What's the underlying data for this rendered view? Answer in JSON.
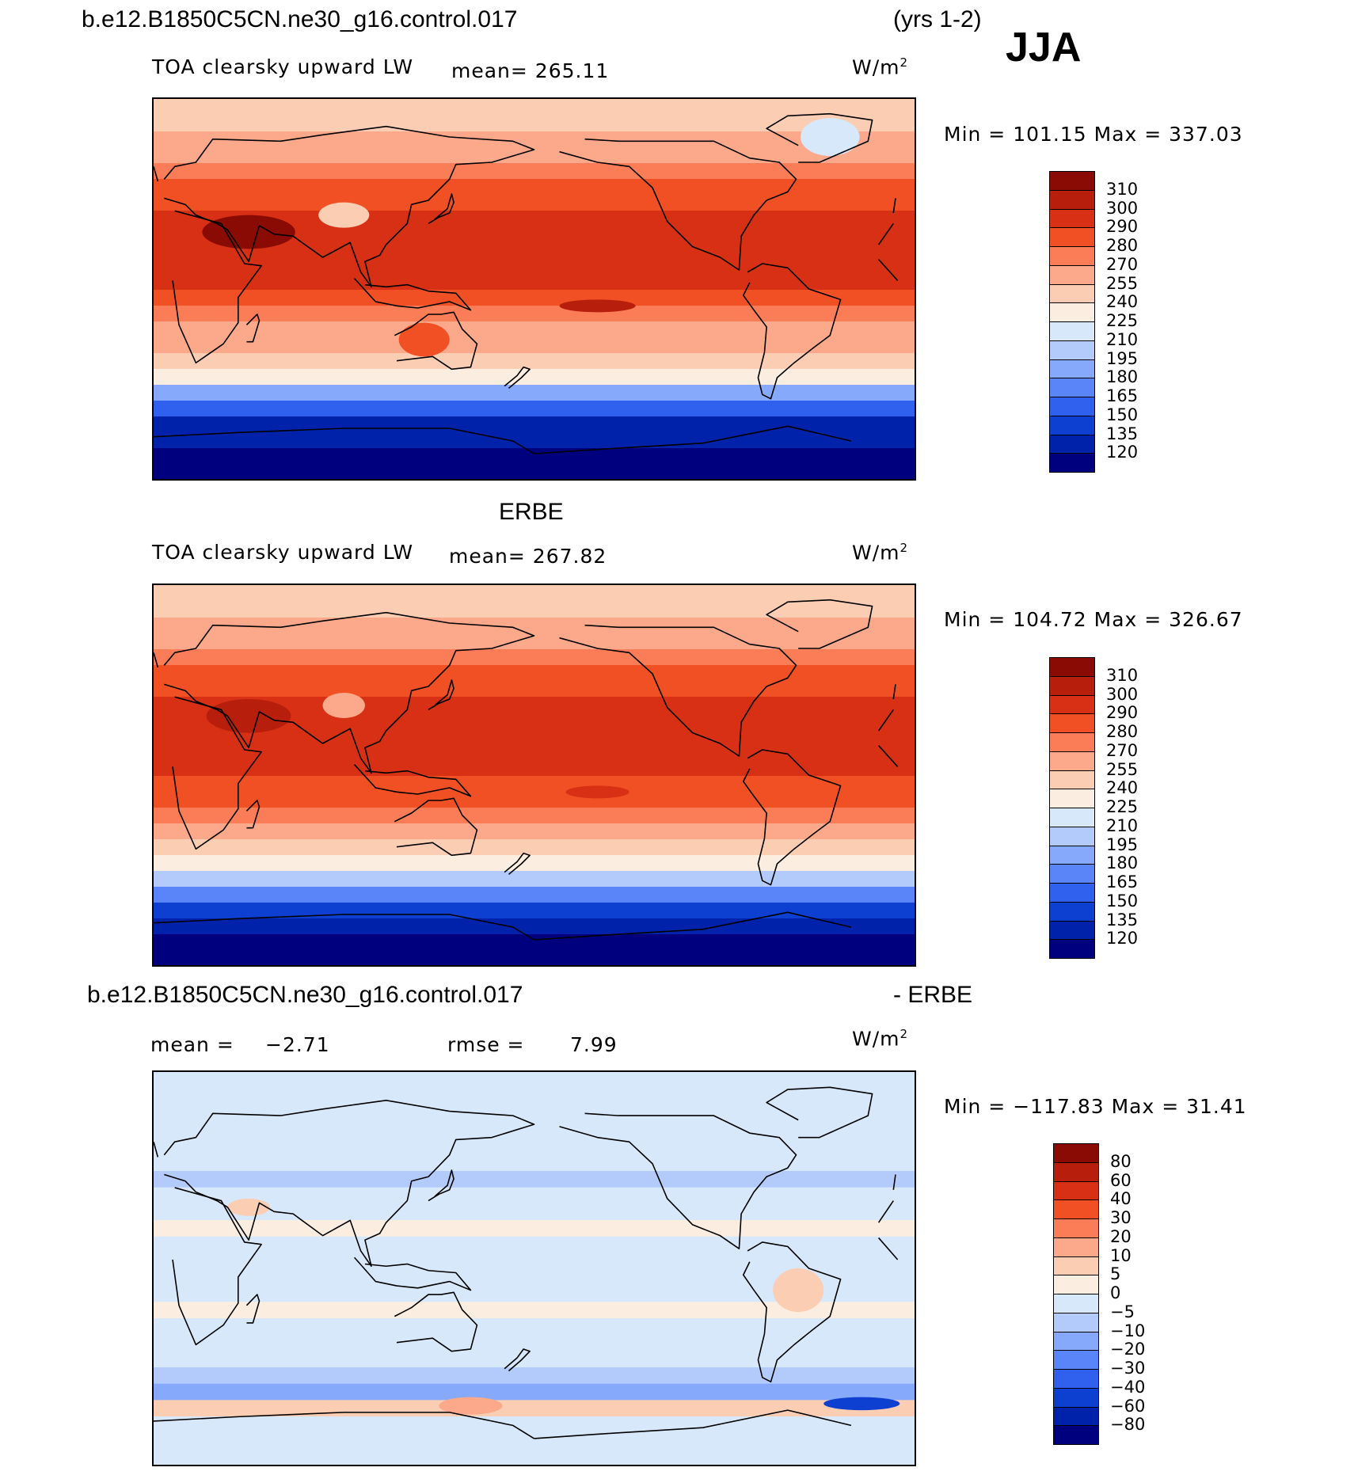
{
  "header": {
    "case_name": "b.e12.B1850C5CN.ne30_g16.control.017",
    "years": "(yrs 1-2)",
    "season": "JJA"
  },
  "colors": {
    "abs_scale": [
      "#00007f",
      "#0022aa",
      "#0d3fd0",
      "#2f60ee",
      "#5a85f9",
      "#86a9fb",
      "#b2cbfb",
      "#d8e8fb",
      "#fbeee0",
      "#fbcdb2",
      "#fba98a",
      "#fb7d57",
      "#f05024",
      "#d73014",
      "#b81e0c",
      "#8a0a04"
    ],
    "diff_scale": [
      "#00007f",
      "#0022aa",
      "#0d3fd0",
      "#2f60ee",
      "#5a85f9",
      "#86a9fb",
      "#b2cbfb",
      "#d8e8fb",
      "#fbeee0",
      "#fbcdb2",
      "#fba98a",
      "#fb7d57",
      "#f05024",
      "#d73014",
      "#b81e0c",
      "#8a0a04"
    ],
    "coast": "#000000",
    "missing": "#ffffff"
  },
  "chart_data": [
    {
      "type": "heatmap",
      "panel": "model",
      "title": "TOA clearsky upward LW",
      "mean_label": "mean= 265.11",
      "units": "W/m",
      "units_sup": "2",
      "minmax": "Min = 101.15 Max = 337.03",
      "min": 101.15,
      "max": 337.03,
      "mean": 265.11,
      "levels": [
        "120",
        "135",
        "150",
        "165",
        "180",
        "195",
        "210",
        "225",
        "240",
        "255",
        "270",
        "280",
        "290",
        "300",
        "310"
      ],
      "lat_profile": [
        115,
        118,
        122,
        130,
        150,
        190,
        228,
        248,
        258,
        268,
        278,
        286,
        292,
        296,
        297,
        296,
        293,
        288,
        282,
        275,
        265,
        258,
        250,
        245
      ],
      "hotspots": [
        {
          "lon": 45,
          "lat": 27,
          "rx": 22,
          "ry": 8,
          "v": 312
        },
        {
          "lon": -150,
          "lat": -8,
          "rx": 18,
          "ry": 3,
          "v": 300
        },
        {
          "lon": 90,
          "lat": 35,
          "rx": 12,
          "ry": 6,
          "v": 248
        },
        {
          "lon": -40,
          "lat": 72,
          "rx": 14,
          "ry": 9,
          "v": 215
        },
        {
          "lon": 128,
          "lat": -24,
          "rx": 12,
          "ry": 8,
          "v": 282
        }
      ]
    },
    {
      "type": "heatmap",
      "panel": "obs",
      "heading": "ERBE",
      "title": "TOA clearsky upward LW",
      "mean_label": "mean= 267.82",
      "units": "W/m",
      "units_sup": "2",
      "minmax": "Min = 104.72 Max = 326.67",
      "min": 104.72,
      "max": 326.67,
      "mean": 267.82,
      "levels": [
        "120",
        "135",
        "150",
        "165",
        "180",
        "195",
        "210",
        "225",
        "240",
        "255",
        "270",
        "280",
        "290",
        "300",
        "310"
      ],
      "lat_profile": [
        112,
        118,
        125,
        140,
        165,
        205,
        236,
        252,
        262,
        271,
        280,
        287,
        292,
        295,
        296,
        295,
        292,
        288,
        283,
        276,
        268,
        260,
        252,
        246
      ],
      "hotspots": [
        {
          "lon": 45,
          "lat": 28,
          "rx": 20,
          "ry": 8,
          "v": 308
        },
        {
          "lon": -150,
          "lat": -8,
          "rx": 15,
          "ry": 3,
          "v": 299
        },
        {
          "lon": 90,
          "lat": 33,
          "rx": 10,
          "ry": 6,
          "v": 262
        }
      ]
    },
    {
      "type": "heatmap",
      "panel": "difference",
      "title_left": "b.e12.B1850C5CN.ne30_g16.control.017",
      "title_right": "- ERBE",
      "mean_label": "mean =",
      "mean_value": "−2.71",
      "rmse_label": "rmse =",
      "rmse_value": "7.99",
      "units": "W/m",
      "units_sup": "2",
      "minmax": "Min = −117.83 Max =   31.41",
      "min": -117.83,
      "max": 31.41,
      "mean": -2.71,
      "rmse": 7.99,
      "levels": [
        "−80",
        "−60",
        "−40",
        "−30",
        "−20",
        "−10",
        "−5",
        "0",
        "5",
        "10",
        "20",
        "30",
        "40",
        "60",
        "80"
      ],
      "lat_profile": [
        -3,
        -2,
        -1,
        6,
        -15,
        -6,
        -3,
        -4,
        -2,
        1,
        -3,
        -5,
        -2,
        -3,
        1,
        -2,
        -4,
        -6,
        -3,
        -2,
        -4,
        -3,
        -2,
        -1
      ],
      "hotspots": [
        {
          "lon": -25,
          "lat": -62,
          "rx": 18,
          "ry": 3,
          "v": -45
        },
        {
          "lon": 150,
          "lat": -63,
          "rx": 15,
          "ry": 4,
          "v": 18
        },
        {
          "lon": 45,
          "lat": 28,
          "rx": 10,
          "ry": 4,
          "v": 9
        },
        {
          "lon": -55,
          "lat": -10,
          "rx": 12,
          "ry": 10,
          "v": 8
        }
      ]
    }
  ]
}
